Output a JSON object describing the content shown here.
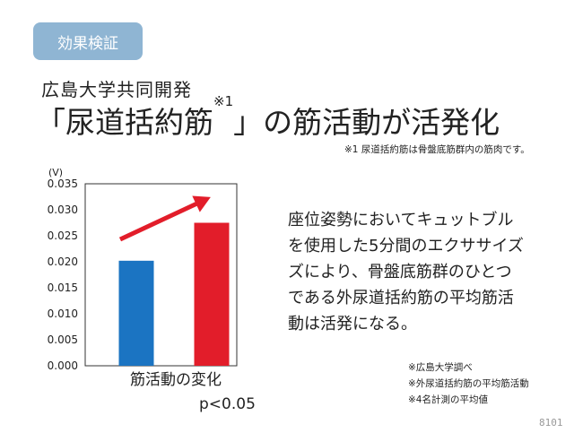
{
  "badge": "効果検証",
  "subtitle": "広島大学共同開発",
  "title": {
    "main": "「尿道括約筋",
    "sup": "※1",
    "rest": "」の筋活動が活発化"
  },
  "footnote": "※1 尿道括約筋は骨盤底筋群内の筋肉です。",
  "description": [
    "座位姿勢においてキュットブル",
    "を使用した5分間のエクササイズ",
    "ズにより、骨盤底筋群のひとつ",
    "である外尿道括約筋の平均筋活",
    "動は活発になる。"
  ],
  "notes": [
    "※広島大学調べ",
    "※外尿道括約筋の平均筋活動",
    "※4名計測の平均値"
  ],
  "code": "8101",
  "colors": {
    "badge_bg": "#8FB5D3",
    "badge_text": "#ffffff",
    "bar_before": "#1B74C2",
    "bar_after": "#E21D2A",
    "arrow": "#E21D2A"
  },
  "chart_data": {
    "type": "bar",
    "ylabel": "(V)",
    "ylim": [
      0,
      0.035
    ],
    "yticks": [
      "0.000",
      "0.005",
      "0.010",
      "0.015",
      "0.020",
      "0.025",
      "0.030",
      "0.035"
    ],
    "xlabel": "筋活動の変化",
    "annotation": "p<0.05",
    "series": [
      {
        "values": [
          0.0202
        ]
      },
      {
        "values": [
          0.0275
        ]
      }
    ],
    "grid": false
  }
}
